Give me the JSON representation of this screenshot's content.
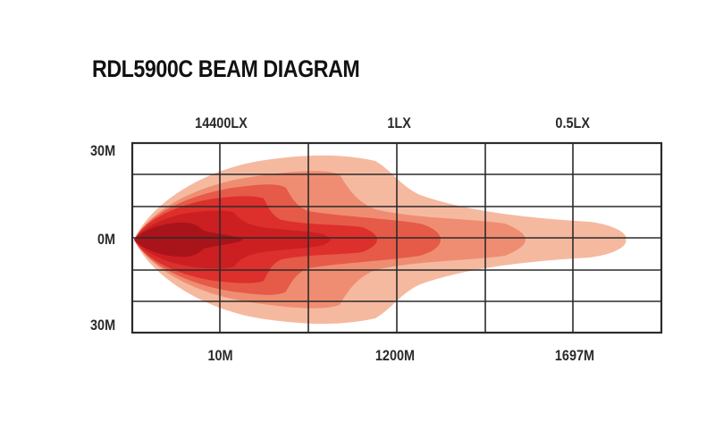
{
  "title": "RDL5900C BEAM DIAGRAM",
  "lux_labels": [
    "14400LX",
    "1LX",
    "0.5LX"
  ],
  "distance_labels": [
    "10M",
    "1200M",
    "1697M"
  ],
  "y_labels": [
    "30M",
    "0M",
    "30M"
  ],
  "colors": {
    "grid": "#2b2b2b",
    "zone_outer": "#f5b9a0",
    "zone_2": "#ef8d72",
    "zone_3": "#e65a48",
    "zone_4": "#dd2f2c",
    "zone_5": "#cc1f22",
    "zone_core": "#a8141a"
  }
}
